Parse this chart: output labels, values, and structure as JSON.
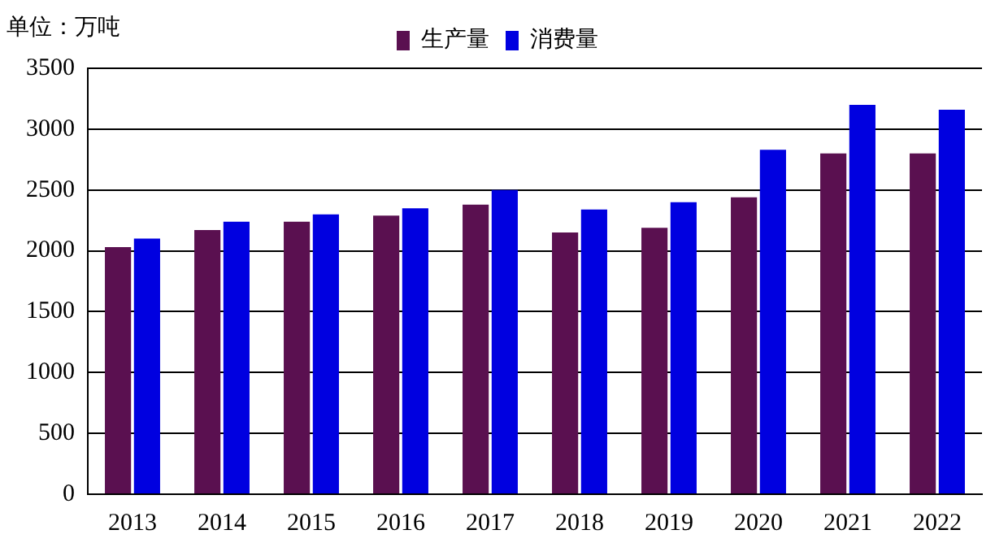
{
  "chart_data": {
    "type": "bar",
    "ylabel": "单位：万吨",
    "categories": [
      "2013",
      "2014",
      "2015",
      "2016",
      "2017",
      "2018",
      "2019",
      "2020",
      "2021",
      "2022"
    ],
    "series": [
      {
        "name": "生产量",
        "color": "#5a1050",
        "values": [
          2030,
          2170,
          2240,
          2290,
          2380,
          2150,
          2190,
          2440,
          2800,
          2800
        ]
      },
      {
        "name": "消费量",
        "color": "#0000e0",
        "values": [
          2100,
          2240,
          2300,
          2350,
          2500,
          2340,
          2400,
          2830,
          3200,
          3160
        ]
      }
    ],
    "ylim": [
      0,
      3500
    ],
    "yticks": [
      0,
      500,
      1000,
      1500,
      2000,
      2500,
      3000,
      3500
    ],
    "grid": "y",
    "legend": "top"
  }
}
